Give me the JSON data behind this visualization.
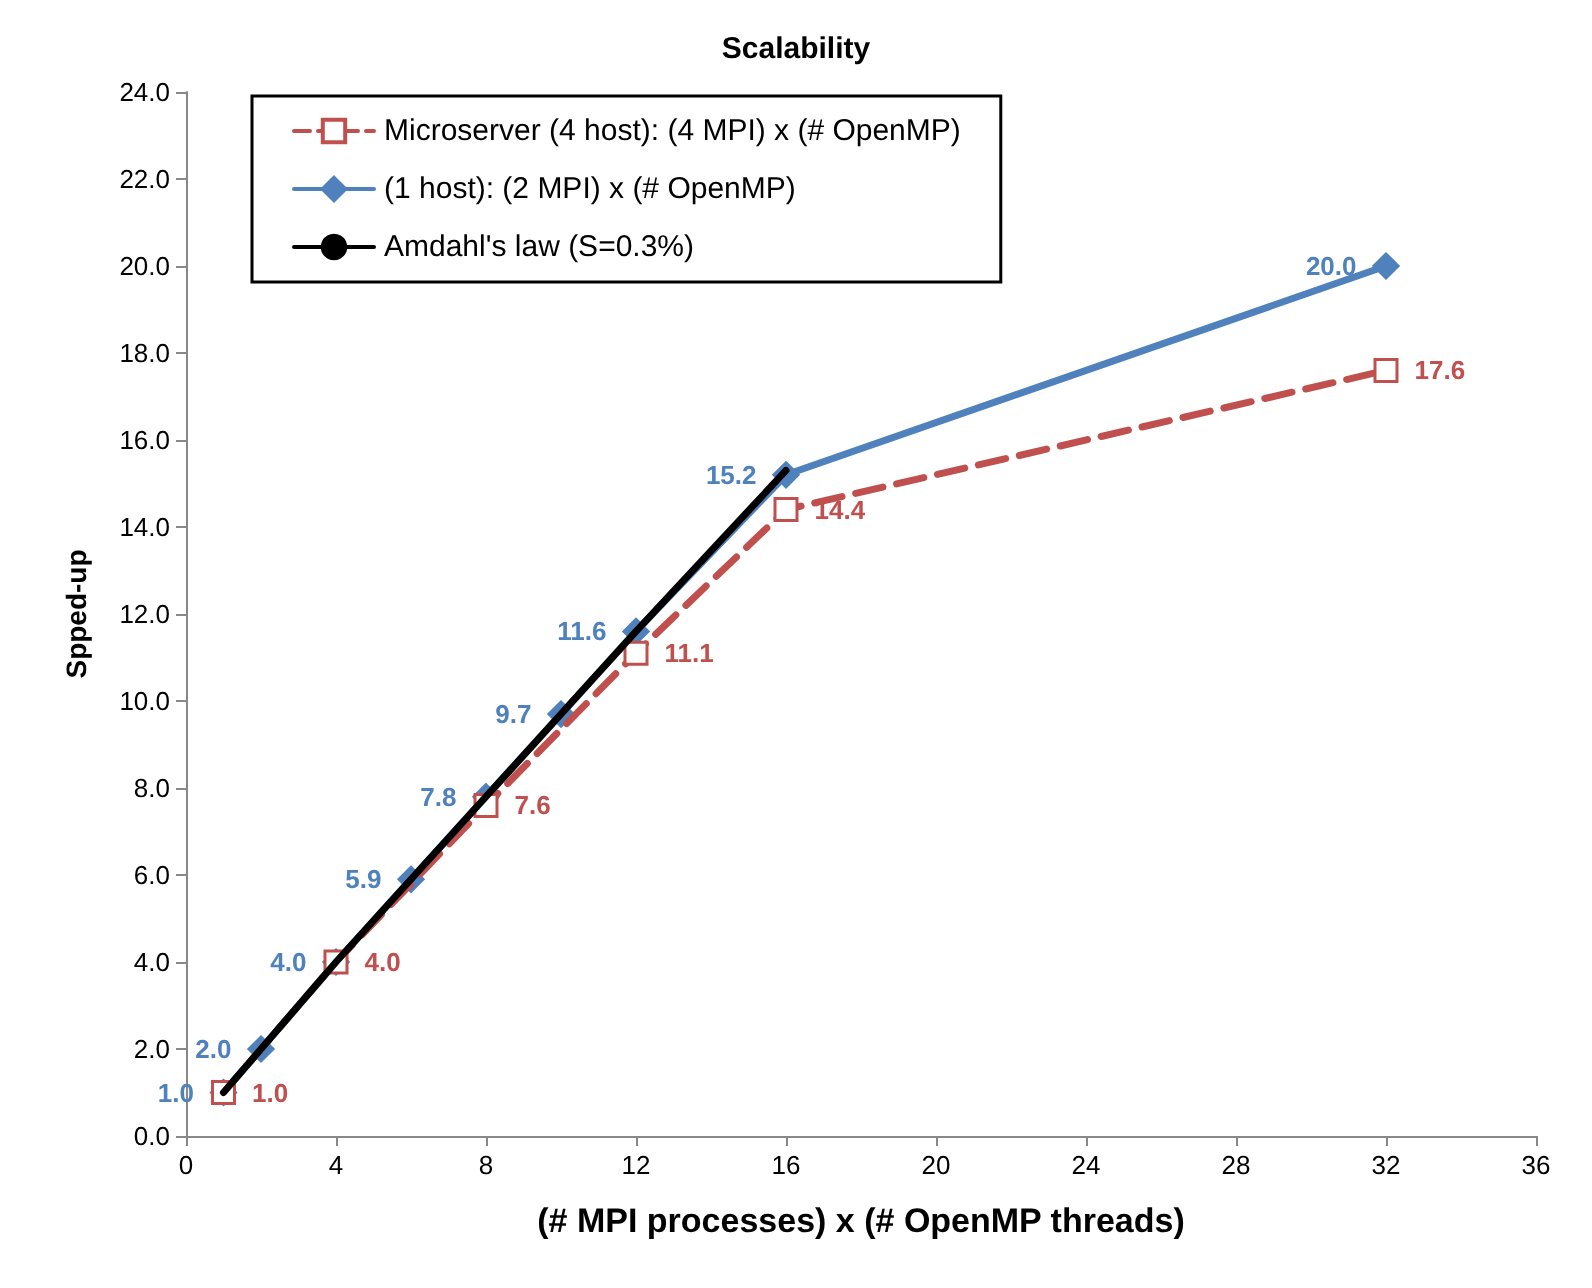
{
  "chart_data": {
    "type": "line",
    "title": "Scalability",
    "xlabel": "(# MPI processes) x (# OpenMP threads)",
    "ylabel": "Spped-up",
    "xlim": [
      0,
      36
    ],
    "xticks": [
      0,
      4,
      8,
      12,
      16,
      20,
      24,
      28,
      32,
      36
    ],
    "ylim": [
      0,
      24
    ],
    "yticks": [
      {
        "value": 0,
        "label": "0.0"
      },
      {
        "value": 2,
        "label": "2.0"
      },
      {
        "value": 4,
        "label": "4.0"
      },
      {
        "value": 6,
        "label": "6.0"
      },
      {
        "value": 8,
        "label": "8.0"
      },
      {
        "value": 10,
        "label": "10.0"
      },
      {
        "value": 12,
        "label": "12.0"
      },
      {
        "value": 14,
        "label": "14.0"
      },
      {
        "value": 16,
        "label": "16.0"
      },
      {
        "value": 18,
        "label": "18.0"
      },
      {
        "value": 20,
        "label": "20.0"
      },
      {
        "value": 22,
        "label": "22.0"
      },
      {
        "value": 24,
        "label": "24.0"
      }
    ],
    "grid": false,
    "legend": "top left",
    "series": [
      {
        "name": "Microserver (4 host): (4 MPI) x (# OpenMP)",
        "color": "#c0504d",
        "marker": "square",
        "line_style": "dashed",
        "x": [
          1,
          4,
          8,
          12,
          16,
          32
        ],
        "values": [
          1.0,
          4.0,
          7.6,
          11.1,
          14.4,
          17.6
        ],
        "value_labels": [
          "1.0",
          "4.0",
          "7.6",
          "11.1",
          "14.4",
          "17.6"
        ]
      },
      {
        "name": "(1 host): (2 MPI) x (# OpenMP)",
        "color": "#4f81bd",
        "marker": "diamond",
        "line_style": "solid",
        "x": [
          1,
          2,
          4,
          6,
          8,
          10,
          12,
          16,
          32
        ],
        "values": [
          1.0,
          2.0,
          4.0,
          5.9,
          7.8,
          9.7,
          11.6,
          15.2,
          20.0
        ],
        "value_labels": [
          "1.0",
          "2.0",
          "4.0",
          "5.9",
          "7.8",
          "9.7",
          "11.6",
          "15.2",
          "20.0"
        ]
      },
      {
        "name": "Amdahl's law (S=0.3%)",
        "color": "#000000",
        "marker": "none",
        "line_style": "solid",
        "x": [
          1,
          2,
          4,
          8,
          12,
          16
        ],
        "values": [
          1.0,
          2.0,
          4.0,
          7.8,
          11.6,
          15.3
        ]
      }
    ]
  }
}
